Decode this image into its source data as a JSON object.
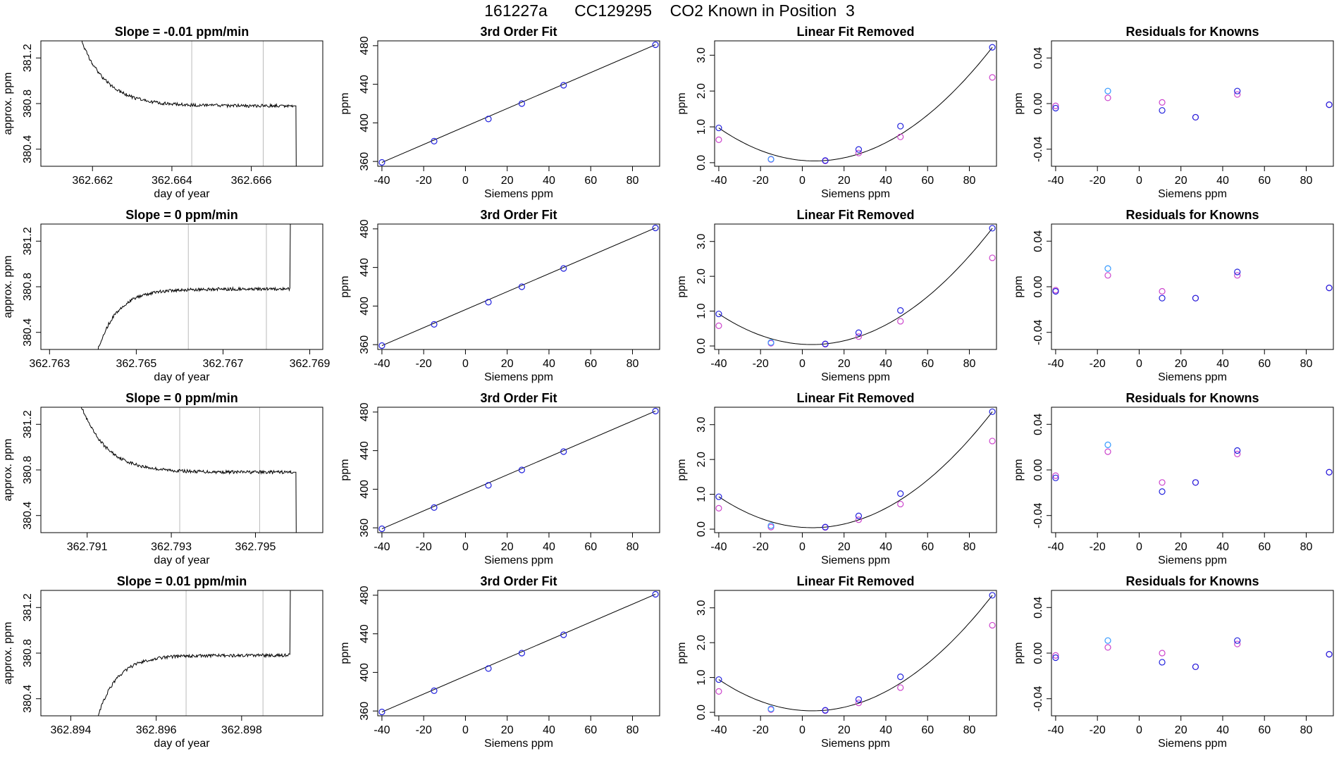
{
  "title": "161227a      CC129295    CO2 Known in Position  3",
  "colors": {
    "trace": "#000000",
    "grid_line": "#bbbbbb",
    "known_blue": "#2222dd",
    "known_magenta": "#cc44cc",
    "first_point": "#3399ff"
  },
  "chart_data": [
    {
      "type": "line",
      "row": 0,
      "title": "Slope =  -0.01  ppm/min",
      "xlabel": "day of year",
      "ylabel": "approx. ppm",
      "xlim": [
        362.6607,
        362.6678
      ],
      "ylim": [
        380.25,
        381.35
      ],
      "xticks": [
        362.662,
        362.664,
        362.666
      ],
      "xtick_labels": [
        "362.662",
        "362.664",
        "362.666"
      ],
      "yticks": [
        380.4,
        380.8,
        381.2
      ],
      "ytick_labels": [
        "380.4",
        "380.8",
        "381.2"
      ],
      "vlines": [
        362.6645,
        362.6663
      ],
      "shape": "fall"
    },
    {
      "type": "scatter",
      "row": 0,
      "title": "3rd Order Fit",
      "xlabel": "Siemens ppm",
      "ylabel": "ppm",
      "xlim": [
        -42,
        93
      ],
      "ylim": [
        355,
        485
      ],
      "xticks": [
        -40,
        -20,
        0,
        20,
        40,
        60,
        80
      ],
      "yticks": [
        360,
        400,
        440,
        480
      ],
      "ytick_labels": [
        "360",
        "400",
        "440",
        "480"
      ],
      "x": [
        -40,
        -15,
        11,
        27,
        47,
        91
      ],
      "y": [
        359,
        381,
        404,
        420,
        439,
        481
      ],
      "line_fit": true
    },
    {
      "type": "scatter",
      "row": 0,
      "title": "Linear Fit Removed",
      "xlabel": "Siemens ppm",
      "ylabel": "ppm",
      "xlim": [
        -42,
        93
      ],
      "ylim": [
        -0.1,
        3.4
      ],
      "xticks": [
        -40,
        -20,
        0,
        20,
        40,
        60,
        80
      ],
      "yticks": [
        0,
        1,
        2,
        3
      ],
      "ytick_labels": [
        "0.0",
        "1.0",
        "2.0",
        "3.0"
      ],
      "x": [
        -40,
        -15,
        11,
        27,
        47,
        91
      ],
      "y": [
        0.97,
        0.1,
        0.06,
        0.37,
        1.02,
        3.22
      ],
      "y2": [
        0.64,
        0.09,
        0.05,
        0.27,
        0.72,
        2.38
      ],
      "curve": true
    },
    {
      "type": "scatter",
      "row": 0,
      "title": "Residuals for Knowns",
      "xlabel": "Siemens ppm",
      "ylabel": "ppm",
      "xlim": [
        -42,
        93
      ],
      "ylim": [
        -0.055,
        0.055
      ],
      "xticks": [
        -40,
        -20,
        0,
        20,
        40,
        60,
        80
      ],
      "yticks": [
        -0.04,
        0,
        0.04
      ],
      "ytick_labels": [
        "-0.04",
        "0.00",
        "0.04"
      ],
      "x": [
        -40,
        -15,
        11,
        27,
        47,
        91
      ],
      "y": [
        -0.004,
        0.011,
        -0.006,
        -0.012,
        0.011,
        -0.001
      ],
      "y2": [
        -0.002,
        0.005,
        0.001,
        -0.012,
        0.008,
        -0.001
      ]
    },
    {
      "type": "line",
      "row": 1,
      "title": "Slope =  0  ppm/min",
      "xlabel": "day of year",
      "ylabel": "approx. ppm",
      "xlim": [
        362.7628,
        362.7693
      ],
      "ylim": [
        380.25,
        381.35
      ],
      "xticks": [
        362.763,
        362.765,
        362.767,
        362.769
      ],
      "xtick_labels": [
        "362.763",
        "362.765",
        "362.767",
        "362.769"
      ],
      "yticks": [
        380.4,
        380.8,
        381.2
      ],
      "ytick_labels": [
        "380.4",
        "380.8",
        "381.2"
      ],
      "vlines": [
        362.7662,
        362.768
      ],
      "shape": "rise"
    },
    {
      "type": "scatter",
      "row": 1,
      "title": "3rd Order Fit",
      "xlabel": "Siemens ppm",
      "ylabel": "ppm",
      "xlim": [
        -42,
        93
      ],
      "ylim": [
        355,
        485
      ],
      "xticks": [
        -40,
        -20,
        0,
        20,
        40,
        60,
        80
      ],
      "yticks": [
        360,
        400,
        440,
        480
      ],
      "ytick_labels": [
        "360",
        "400",
        "440",
        "480"
      ],
      "x": [
        -40,
        -15,
        11,
        27,
        47,
        91
      ],
      "y": [
        359,
        381,
        404,
        420,
        439,
        481
      ],
      "line_fit": true
    },
    {
      "type": "scatter",
      "row": 1,
      "title": "Linear Fit Removed",
      "xlabel": "Siemens ppm",
      "ylabel": "ppm",
      "xlim": [
        -42,
        93
      ],
      "ylim": [
        -0.1,
        3.5
      ],
      "xticks": [
        -40,
        -20,
        0,
        20,
        40,
        60,
        80
      ],
      "yticks": [
        0,
        1,
        2,
        3
      ],
      "ytick_labels": [
        "0.0",
        "1.0",
        "2.0",
        "3.0"
      ],
      "x": [
        -40,
        -15,
        11,
        27,
        47,
        91
      ],
      "y": [
        0.92,
        0.1,
        0.06,
        0.38,
        1.02,
        3.38
      ],
      "y2": [
        0.58,
        0.08,
        0.05,
        0.27,
        0.71,
        2.53
      ],
      "curve": true
    },
    {
      "type": "scatter",
      "row": 1,
      "title": "Residuals for Knowns",
      "xlabel": "Siemens ppm",
      "ylabel": "ppm",
      "xlim": [
        -42,
        93
      ],
      "ylim": [
        -0.055,
        0.055
      ],
      "xticks": [
        -40,
        -20,
        0,
        20,
        40,
        60,
        80
      ],
      "yticks": [
        -0.04,
        0,
        0.04
      ],
      "ytick_labels": [
        "-0.04",
        "0.00",
        "0.04"
      ],
      "x": [
        -40,
        -15,
        11,
        27,
        47,
        91
      ],
      "y": [
        -0.004,
        0.016,
        -0.01,
        -0.01,
        0.013,
        -0.001
      ],
      "y2": [
        -0.003,
        0.01,
        -0.004,
        -0.01,
        0.01,
        -0.001
      ]
    },
    {
      "type": "line",
      "row": 2,
      "title": "Slope =  0  ppm/min",
      "xlabel": "day of year",
      "ylabel": "approx. ppm",
      "xlim": [
        362.7899,
        362.7966
      ],
      "ylim": [
        380.25,
        381.35
      ],
      "xticks": [
        362.791,
        362.793,
        362.795
      ],
      "xtick_labels": [
        "362.791",
        "362.793",
        "362.795"
      ],
      "yticks": [
        380.4,
        380.8,
        381.2
      ],
      "ytick_labels": [
        "380.4",
        "380.8",
        "381.2"
      ],
      "vlines": [
        362.7932,
        362.7951
      ],
      "shape": "fall"
    },
    {
      "type": "scatter",
      "row": 2,
      "title": "3rd Order Fit",
      "xlabel": "Siemens ppm",
      "ylabel": "ppm",
      "xlim": [
        -42,
        93
      ],
      "ylim": [
        355,
        485
      ],
      "xticks": [
        -40,
        -20,
        0,
        20,
        40,
        60,
        80
      ],
      "yticks": [
        360,
        400,
        440,
        480
      ],
      "ytick_labels": [
        "360",
        "400",
        "440",
        "480"
      ],
      "x": [
        -40,
        -15,
        11,
        27,
        47,
        91
      ],
      "y": [
        359,
        381,
        404,
        420,
        439,
        481
      ],
      "line_fit": true
    },
    {
      "type": "scatter",
      "row": 2,
      "title": "Linear Fit Removed",
      "xlabel": "Siemens ppm",
      "ylabel": "ppm",
      "xlim": [
        -42,
        93
      ],
      "ylim": [
        -0.1,
        3.5
      ],
      "xticks": [
        -40,
        -20,
        0,
        20,
        40,
        60,
        80
      ],
      "yticks": [
        0,
        1,
        2,
        3
      ],
      "ytick_labels": [
        "0.0",
        "1.0",
        "2.0",
        "3.0"
      ],
      "x": [
        -40,
        -15,
        11,
        27,
        47,
        91
      ],
      "y": [
        0.93,
        0.1,
        0.06,
        0.38,
        1.02,
        3.37
      ],
      "y2": [
        0.6,
        0.06,
        0.05,
        0.27,
        0.72,
        2.53
      ],
      "curve": true
    },
    {
      "type": "scatter",
      "row": 2,
      "title": "Residuals for Knowns",
      "xlabel": "Siemens ppm",
      "ylabel": "ppm",
      "xlim": [
        -42,
        93
      ],
      "ylim": [
        -0.055,
        0.055
      ],
      "xticks": [
        -40,
        -20,
        0,
        20,
        40,
        60,
        80
      ],
      "yticks": [
        -0.04,
        0,
        0.04
      ],
      "ytick_labels": [
        "-0.04",
        "0.00",
        "0.04"
      ],
      "x": [
        -40,
        -15,
        11,
        27,
        47,
        91
      ],
      "y": [
        -0.007,
        0.022,
        -0.019,
        -0.011,
        0.017,
        -0.002
      ],
      "y2": [
        -0.005,
        0.016,
        -0.011,
        -0.011,
        0.014,
        -0.002
      ]
    },
    {
      "type": "line",
      "row": 3,
      "title": "Slope =  0.01  ppm/min",
      "xlabel": "day of year",
      "ylabel": "approx. ppm",
      "xlim": [
        362.8933,
        362.8999
      ],
      "ylim": [
        380.25,
        381.35
      ],
      "xticks": [
        362.894,
        362.896,
        362.898
      ],
      "xtick_labels": [
        "362.894",
        "362.896",
        "362.898"
      ],
      "yticks": [
        380.4,
        380.8,
        381.2
      ],
      "ytick_labels": [
        "380.4",
        "380.8",
        "381.2"
      ],
      "vlines": [
        362.8967,
        362.8985
      ],
      "shape": "rise"
    },
    {
      "type": "scatter",
      "row": 3,
      "title": "3rd Order Fit",
      "xlabel": "Siemens ppm",
      "ylabel": "ppm",
      "xlim": [
        -42,
        93
      ],
      "ylim": [
        355,
        485
      ],
      "xticks": [
        -40,
        -20,
        0,
        20,
        40,
        60,
        80
      ],
      "yticks": [
        360,
        400,
        440,
        480
      ],
      "ytick_labels": [
        "360",
        "400",
        "440",
        "480"
      ],
      "x": [
        -40,
        -15,
        11,
        27,
        47,
        91
      ],
      "y": [
        359,
        381,
        404,
        420,
        439,
        481
      ],
      "line_fit": true
    },
    {
      "type": "scatter",
      "row": 3,
      "title": "Linear Fit Removed",
      "xlabel": "Siemens ppm",
      "ylabel": "ppm",
      "xlim": [
        -42,
        93
      ],
      "ylim": [
        -0.1,
        3.5
      ],
      "xticks": [
        -40,
        -20,
        0,
        20,
        40,
        60,
        80
      ],
      "yticks": [
        0,
        1,
        2,
        3
      ],
      "ytick_labels": [
        "0.0",
        "1.0",
        "2.0",
        "3.0"
      ],
      "x": [
        -40,
        -15,
        11,
        27,
        47,
        91
      ],
      "y": [
        0.94,
        0.1,
        0.06,
        0.37,
        1.02,
        3.36
      ],
      "y2": [
        0.6,
        0.08,
        0.05,
        0.27,
        0.71,
        2.5
      ],
      "curve": true
    },
    {
      "type": "scatter",
      "row": 3,
      "title": "Residuals for Knowns",
      "xlabel": "Siemens ppm",
      "ylabel": "ppm",
      "xlim": [
        -42,
        93
      ],
      "ylim": [
        -0.055,
        0.055
      ],
      "xticks": [
        -40,
        -20,
        0,
        20,
        40,
        60,
        80
      ],
      "yticks": [
        -0.04,
        0,
        0.04
      ],
      "ytick_labels": [
        "-0.04",
        "0.00",
        "0.04"
      ],
      "x": [
        -40,
        -15,
        11,
        27,
        47,
        91
      ],
      "y": [
        -0.004,
        0.011,
        -0.008,
        -0.012,
        0.011,
        -0.001
      ],
      "y2": [
        -0.002,
        0.005,
        0.0,
        -0.012,
        0.008,
        -0.001
      ]
    }
  ]
}
